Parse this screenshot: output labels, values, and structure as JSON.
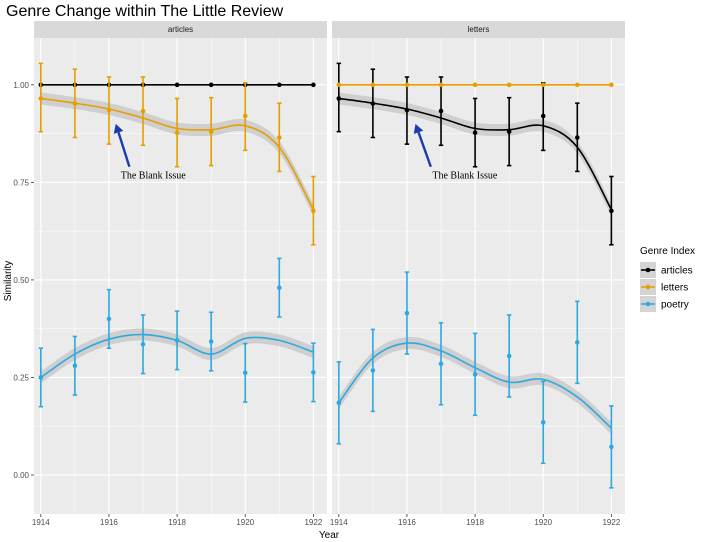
{
  "chart_data": {
    "type": "line",
    "title": "Genre Change within The Little Review",
    "xlabel": "Year",
    "ylabel": "Similarity",
    "xlim": [
      1913.8,
      1922.4
    ],
    "ylim": [
      -0.1,
      1.12
    ],
    "x_ticks": [
      1914,
      1916,
      1918,
      1920,
      1922
    ],
    "y_ticks": [
      0.0,
      0.25,
      0.5,
      0.75,
      1.0
    ],
    "y_tick_labels": [
      "0.00",
      "0.25",
      "0.50",
      "0.75",
      "1.00"
    ],
    "grid": true,
    "legend": {
      "title": "Genre Index",
      "position": "right",
      "entries": [
        "articles",
        "letters",
        "poetry"
      ]
    },
    "colors": {
      "articles": "#000000",
      "letters": "#E69F00",
      "poetry": "#2EA9DF",
      "panel_bg": "#EBEBEB",
      "strip_bg": "#D9D9D9",
      "grid": "#ffffff",
      "ribbon": "#BDBDBD",
      "arrow": "#1F3AAF"
    },
    "panels": [
      {
        "strip": "articles",
        "annotation": {
          "text": "The Blank Issue",
          "x": 1917.3,
          "y": 0.77,
          "arrow_from": [
            1916.6,
            0.79
          ],
          "arrow_to": [
            1916.2,
            0.9
          ]
        },
        "series": [
          {
            "name": "articles",
            "x": [
              1914,
              1915,
              1916,
              1917,
              1918,
              1919,
              1920,
              1921,
              1922
            ],
            "values": [
              1.0,
              1.0,
              1.0,
              1.0,
              1.0,
              1.0,
              1.0,
              1.0,
              1.0
            ],
            "err_low": [
              1.0,
              1.0,
              1.0,
              1.0,
              1.0,
              1.0,
              1.0,
              1.0,
              1.0
            ],
            "err_high": [
              1.0,
              1.0,
              1.0,
              1.0,
              1.0,
              1.0,
              1.0,
              1.0,
              1.0
            ],
            "smooth": [
              1.0,
              1.0,
              1.0,
              1.0,
              1.0,
              1.0,
              1.0,
              1.0,
              1.0
            ],
            "ribbon": false
          },
          {
            "name": "letters",
            "x": [
              1914,
              1915,
              1916,
              1917,
              1918,
              1919,
              1920,
              1921,
              1922
            ],
            "values": [
              0.965,
              0.952,
              0.935,
              0.933,
              0.877,
              0.88,
              0.92,
              0.865,
              0.677
            ],
            "err_low": [
              0.88,
              0.865,
              0.848,
              0.845,
              0.79,
              0.793,
              0.832,
              0.778,
              0.59
            ],
            "err_high": [
              1.055,
              1.04,
              1.02,
              1.02,
              0.965,
              0.967,
              1.005,
              0.953,
              0.765
            ],
            "smooth": [
              0.965,
              0.953,
              0.938,
              0.915,
              0.888,
              0.885,
              0.895,
              0.84,
              0.68
            ],
            "ribbon": true
          },
          {
            "name": "poetry",
            "x": [
              1914,
              1915,
              1916,
              1917,
              1918,
              1919,
              1920,
              1921,
              1922
            ],
            "values": [
              0.25,
              0.28,
              0.4,
              0.335,
              0.345,
              0.342,
              0.262,
              0.48,
              0.263
            ],
            "err_low": [
              0.175,
              0.205,
              0.325,
              0.26,
              0.27,
              0.267,
              0.187,
              0.405,
              0.188
            ],
            "err_high": [
              0.325,
              0.355,
              0.475,
              0.41,
              0.42,
              0.417,
              0.337,
              0.555,
              0.338
            ],
            "smooth": [
              0.25,
              0.31,
              0.348,
              0.36,
              0.345,
              0.31,
              0.35,
              0.345,
              0.315
            ],
            "ribbon": true
          }
        ]
      },
      {
        "strip": "letters",
        "annotation": {
          "text": "The Blank Issue",
          "x": 1917.7,
          "y": 0.77,
          "arrow_from": [
            1916.7,
            0.79
          ],
          "arrow_to": [
            1916.25,
            0.9
          ]
        },
        "series": [
          {
            "name": "articles",
            "x": [
              1914,
              1915,
              1916,
              1917,
              1918,
              1919,
              1920,
              1921,
              1922
            ],
            "values": [
              0.965,
              0.952,
              0.935,
              0.933,
              0.877,
              0.88,
              0.92,
              0.865,
              0.677
            ],
            "err_low": [
              0.88,
              0.865,
              0.848,
              0.845,
              0.79,
              0.793,
              0.832,
              0.778,
              0.59
            ],
            "err_high": [
              1.055,
              1.04,
              1.02,
              1.02,
              0.965,
              0.967,
              1.005,
              0.953,
              0.765
            ],
            "smooth": [
              0.965,
              0.953,
              0.938,
              0.915,
              0.888,
              0.885,
              0.895,
              0.84,
              0.68
            ],
            "ribbon": true
          },
          {
            "name": "letters",
            "x": [
              1914,
              1915,
              1916,
              1917,
              1918,
              1919,
              1920,
              1921,
              1922
            ],
            "values": [
              1.0,
              1.0,
              1.0,
              1.0,
              1.0,
              1.0,
              1.0,
              1.0,
              1.0
            ],
            "err_low": [
              1.0,
              1.0,
              1.0,
              1.0,
              1.0,
              1.0,
              1.0,
              1.0,
              1.0
            ],
            "err_high": [
              1.0,
              1.0,
              1.0,
              1.0,
              1.0,
              1.0,
              1.0,
              1.0,
              1.0
            ],
            "smooth": [
              1.0,
              1.0,
              1.0,
              1.0,
              1.0,
              1.0,
              1.0,
              1.0,
              1.0
            ],
            "ribbon": false
          },
          {
            "name": "poetry",
            "x": [
              1914,
              1915,
              1916,
              1917,
              1918,
              1919,
              1920,
              1921,
              1922
            ],
            "values": [
              0.185,
              0.268,
              0.415,
              0.285,
              0.258,
              0.305,
              0.135,
              0.34,
              0.072
            ],
            "err_low": [
              0.08,
              0.163,
              0.31,
              0.18,
              0.153,
              0.2,
              0.03,
              0.235,
              -0.033
            ],
            "err_high": [
              0.29,
              0.373,
              0.52,
              0.39,
              0.363,
              0.41,
              0.24,
              0.445,
              0.177
            ],
            "smooth": [
              0.185,
              0.3,
              0.338,
              0.318,
              0.275,
              0.238,
              0.245,
              0.2,
              0.12
            ],
            "ribbon": true
          }
        ]
      }
    ]
  }
}
